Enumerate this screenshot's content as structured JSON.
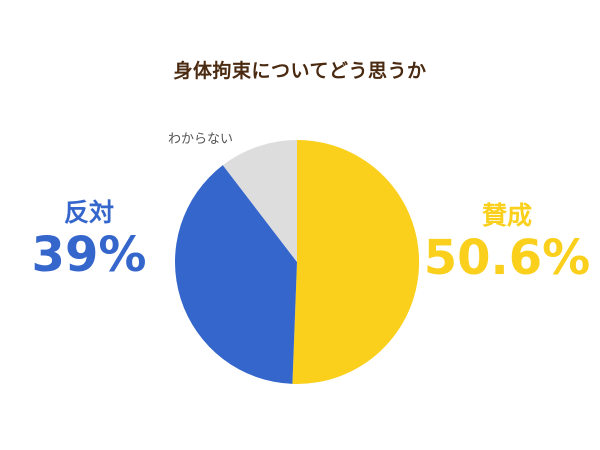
{
  "chart_data": {
    "type": "pie",
    "title": "身体拘束についてどう思うか",
    "slices": [
      {
        "label": "賛成",
        "value": 50.6,
        "value_label": "50.6%",
        "color": "#fad01c"
      },
      {
        "label": "反対",
        "value": 39,
        "value_label": "39%",
        "color": "#3566cc"
      },
      {
        "label": "わからない",
        "value": 10.4,
        "value_label": "",
        "color": "#dddddd"
      }
    ],
    "start_angle_deg": 0,
    "direction": "clockwise",
    "legend": "none"
  }
}
